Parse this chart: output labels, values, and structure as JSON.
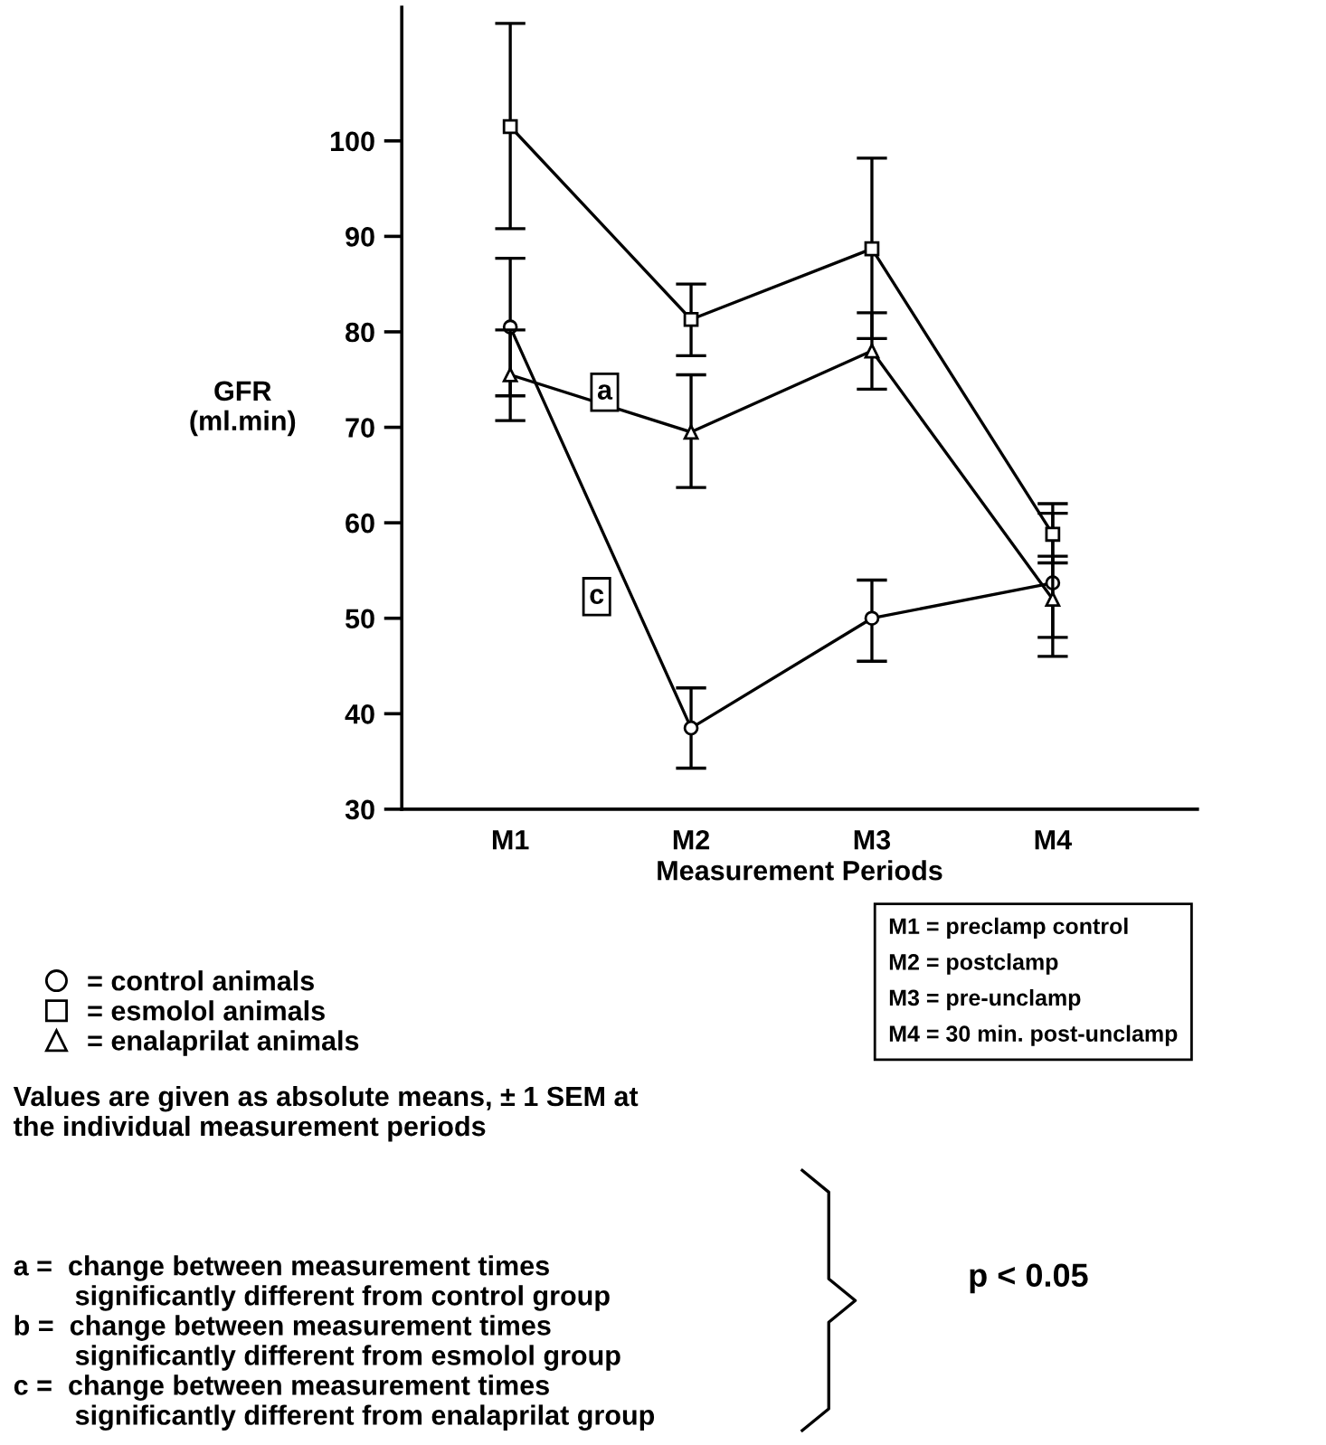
{
  "chart_data": {
    "type": "line",
    "xlabel": "Measurement Periods",
    "ylabel": "GFR\n(ml.min)",
    "categories": [
      "M1",
      "M2",
      "M3",
      "M4"
    ],
    "ylim": [
      30,
      114
    ],
    "yticks": [
      30,
      40,
      50,
      60,
      70,
      80,
      90,
      100
    ],
    "series": [
      {
        "name": "= control animals",
        "color": "#000000",
        "marker": "circle",
        "values": [
          80.5,
          38.5,
          50,
          53.7
        ],
        "errors": [
          [
            73.3,
            87.7
          ],
          [
            34.3,
            42.7
          ],
          [
            45.5,
            54
          ],
          [
            46,
            61
          ]
        ]
      },
      {
        "name": "= esmolol animals",
        "color": "#000000",
        "marker": "square",
        "values": [
          101.5,
          81.3,
          88.7,
          58.8
        ],
        "errors": [
          [
            90.8,
            112.3
          ],
          [
            77.5,
            85
          ],
          [
            79.3,
            98.2
          ],
          [
            55.8,
            62
          ]
        ]
      },
      {
        "name": "= enalaprilat animals",
        "color": "#000000",
        "marker": "triangle",
        "values": [
          75.5,
          69.5,
          78,
          52
        ],
        "errors": [
          [
            70.7,
            80.2
          ],
          [
            63.7,
            75.5
          ],
          [
            74,
            82
          ],
          [
            48,
            56.5
          ]
        ]
      }
    ],
    "annotations": [
      "a",
      "c",
      "M1 = preclamp control\nM2 = postclamp\nM3 = pre-unclamp\nM4 = 30 min. post-unclamp",
      "Values are given as absolute means, ± 1 SEM at\nthe individual measurement periods",
      "a =  change between measurement times\n        significantly different from control group\nb =  change between measurement times\n        significantly different from esmolol group\nc =  change between measurement times\n        significantly different from enalaprilat group",
      "p < 0.05"
    ],
    "legend": "bottom left",
    "grid": false,
    "line_style": "solid"
  }
}
